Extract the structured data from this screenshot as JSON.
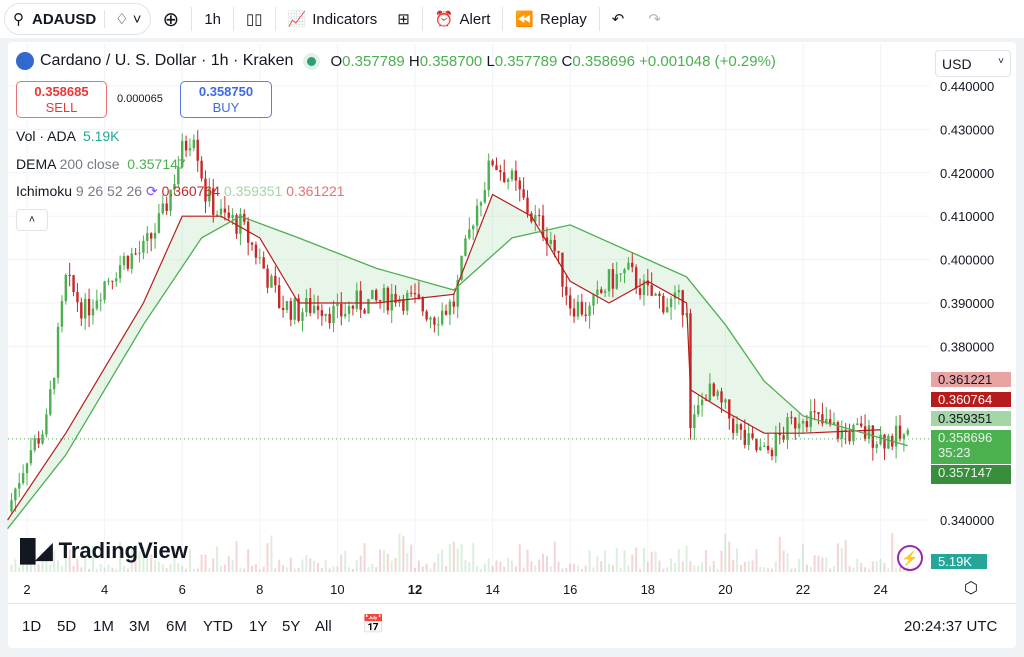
{
  "toolbar": {
    "symbol": "ADAUSD",
    "interval": "1h",
    "indicators": "Indicators",
    "alert": "Alert",
    "replay": "Replay"
  },
  "legend": {
    "title": "Cardano / U. S. Dollar · 1h · Kraken",
    "o_label": "O",
    "o": "0.357789",
    "h_label": "H",
    "h": "0.358700",
    "l_label": "L",
    "l": "0.357789",
    "c_label": "C",
    "c": "0.358696",
    "change": "+0.001048 (+0.29%)"
  },
  "trade": {
    "sell_price": "0.358685",
    "sell_label": "SELL",
    "spread": "0.000065",
    "buy_price": "0.358750",
    "buy_label": "BUY"
  },
  "indicators": {
    "vol_label": "Vol · ADA",
    "vol_value": "5.19K",
    "dema_label": "DEMA",
    "dema_params": "200 close",
    "dema_value": "0.357147",
    "ichi_label": "Ichimoku",
    "ichi_params": "9 26 52 26",
    "ichi_v1": "0.360764",
    "ichi_v2": "0.359351",
    "ichi_v3": "0.361221"
  },
  "currency": "USD",
  "price_tags": {
    "t1": "0.361221",
    "t2": "0.360764",
    "t3": "0.359351",
    "last": "0.358696",
    "countdown": "35:23",
    "dema": "0.357147",
    "volume": "5.19K"
  },
  "colors": {
    "up": "#4caf50",
    "down": "#c62828",
    "dema": "#4caf50",
    "ichi_base": "#b71c1c",
    "cloud_up": "#a5d6a7",
    "cloud_down": "#ef9a9a"
  },
  "brand": "TradingView",
  "ranges": [
    "1D",
    "5D",
    "1M",
    "3M",
    "6M",
    "YTD",
    "1Y",
    "5Y",
    "All"
  ],
  "clock": "20:24:37 UTC",
  "chart_data": {
    "type": "candlestick",
    "yticks": [
      "0.440000",
      "0.430000",
      "0.420000",
      "0.410000",
      "0.400000",
      "0.390000",
      "0.380000",
      "0.340000"
    ],
    "ylim": [
      0.33,
      0.445
    ],
    "xticks": [
      {
        "label": "2",
        "day": 2
      },
      {
        "label": "4",
        "day": 4
      },
      {
        "label": "6",
        "day": 6
      },
      {
        "label": "8",
        "day": 8
      },
      {
        "label": "10",
        "day": 10
      },
      {
        "label": "12",
        "day": 12,
        "bold": true
      },
      {
        "label": "14",
        "day": 14
      },
      {
        "label": "16",
        "day": 16
      },
      {
        "label": "18",
        "day": 18
      },
      {
        "label": "20",
        "day": 20
      },
      {
        "label": "22",
        "day": 22
      },
      {
        "label": "24",
        "day": 24
      }
    ],
    "close": [
      [
        1.5,
        0.342
      ],
      [
        2,
        0.355
      ],
      [
        2.5,
        0.362
      ],
      [
        3,
        0.395
      ],
      [
        3.5,
        0.388
      ],
      [
        4,
        0.395
      ],
      [
        4.5,
        0.4
      ],
      [
        5,
        0.402
      ],
      [
        5.5,
        0.41
      ],
      [
        6,
        0.425
      ],
      [
        6.3,
        0.43
      ],
      [
        6.6,
        0.415
      ],
      [
        7,
        0.41
      ],
      [
        7.5,
        0.408
      ],
      [
        8,
        0.4
      ],
      [
        8.5,
        0.39
      ],
      [
        9,
        0.388
      ],
      [
        9.5,
        0.39
      ],
      [
        10,
        0.387
      ],
      [
        10.5,
        0.39
      ],
      [
        11,
        0.39
      ],
      [
        11.5,
        0.392
      ],
      [
        12,
        0.39
      ],
      [
        12.5,
        0.387
      ],
      [
        13,
        0.39
      ],
      [
        13.5,
        0.41
      ],
      [
        14,
        0.423
      ],
      [
        14.5,
        0.418
      ],
      [
        15,
        0.41
      ],
      [
        15.5,
        0.405
      ],
      [
        16,
        0.39
      ],
      [
        16.5,
        0.388
      ],
      [
        17,
        0.395
      ],
      [
        17.5,
        0.397
      ],
      [
        18,
        0.392
      ],
      [
        18.5,
        0.39
      ],
      [
        19,
        0.39
      ],
      [
        19.1,
        0.36
      ],
      [
        19.5,
        0.37
      ],
      [
        20,
        0.365
      ],
      [
        20.5,
        0.358
      ],
      [
        21,
        0.355
      ],
      [
        21.5,
        0.36
      ],
      [
        22,
        0.365
      ],
      [
        22.5,
        0.362
      ],
      [
        23,
        0.36
      ],
      [
        23.5,
        0.36
      ],
      [
        24,
        0.359
      ],
      [
        24.7,
        0.3587
      ]
    ],
    "dema": [
      [
        1.5,
        0.338
      ],
      [
        3,
        0.355
      ],
      [
        5,
        0.385
      ],
      [
        6.5,
        0.405
      ],
      [
        7.5,
        0.41
      ],
      [
        9,
        0.405
      ],
      [
        11,
        0.398
      ],
      [
        13,
        0.393
      ],
      [
        14.5,
        0.405
      ],
      [
        16,
        0.408
      ],
      [
        18,
        0.4
      ],
      [
        19,
        0.396
      ],
      [
        20,
        0.385
      ],
      [
        21,
        0.372
      ],
      [
        22,
        0.364
      ],
      [
        24.7,
        0.3571
      ]
    ],
    "ichimoku_base": [
      [
        1.5,
        0.34
      ],
      [
        3,
        0.36
      ],
      [
        4,
        0.375
      ],
      [
        5,
        0.39
      ],
      [
        6,
        0.41
      ],
      [
        7,
        0.41
      ],
      [
        8,
        0.405
      ],
      [
        9,
        0.39
      ],
      [
        11,
        0.39
      ],
      [
        13,
        0.392
      ],
      [
        14,
        0.415
      ],
      [
        15,
        0.41
      ],
      [
        16,
        0.395
      ],
      [
        17,
        0.39
      ],
      [
        18,
        0.395
      ],
      [
        19,
        0.39
      ],
      [
        19.1,
        0.37
      ],
      [
        20,
        0.365
      ],
      [
        21,
        0.36
      ],
      [
        22,
        0.36
      ],
      [
        24,
        0.3608
      ]
    ]
  }
}
